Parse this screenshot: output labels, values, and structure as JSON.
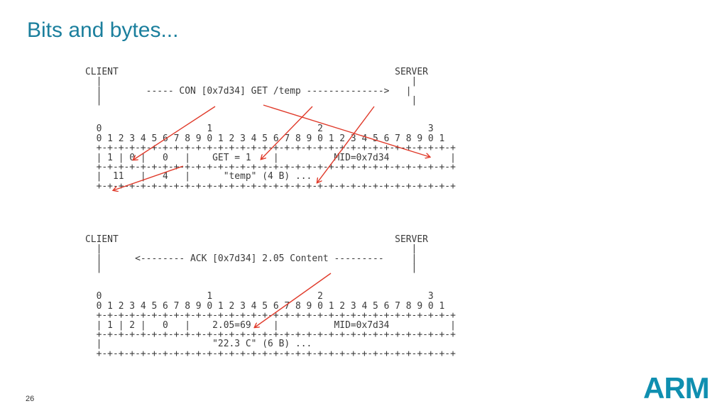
{
  "slide": {
    "title": "Bits and bytes...",
    "page_number": "26",
    "logo_text": "ARM",
    "accent_color": "#1b7f9d",
    "arrow_color": "#e03a2a"
  },
  "request": {
    "lines": [
      "CLIENT                                                  SERVER",
      "  |                                                        |",
      "  |        ----- CON [0x7d34] GET /temp -------------->   |",
      "  |                                                        |",
      "",
      "",
      "  0                   1                   2                   3",
      "  0 1 2 3 4 5 6 7 8 9 0 1 2 3 4 5 6 7 8 9 0 1 2 3 4 5 6 7 8 9 0 1",
      "  +-+-+-+-+-+-+-+-+-+-+-+-+-+-+-+-+-+-+-+-+-+-+-+-+-+-+-+-+-+-+-+-+",
      "  | 1 | 0 |   0   |    GET = 1    |          MID=0x7d34           |",
      "  +-+-+-+-+-+-+-+-+-+-+-+-+-+-+-+-+-+-+-+-+-+-+-+-+-+-+-+-+-+-+-+-+",
      "  |  11   |   4   |      \"temp\" (4 B) ...",
      "  +-+-+-+-+-+-+-+-+-+-+-+-+-+-+-+-+-+-+-+-+-+-+-+-+-+-+-+-+-+-+-+-+"
    ]
  },
  "response": {
    "lines": [
      "CLIENT                                                  SERVER",
      "  |                                                        |",
      "  |      <-------- ACK [0x7d34] 2.05 Content ---------     |",
      "  |                                                        |",
      "",
      "",
      "  0                   1                   2                   3",
      "  0 1 2 3 4 5 6 7 8 9 0 1 2 3 4 5 6 7 8 9 0 1 2 3 4 5 6 7 8 9 0 1",
      "  +-+-+-+-+-+-+-+-+-+-+-+-+-+-+-+-+-+-+-+-+-+-+-+-+-+-+-+-+-+-+-+-+",
      "  | 1 | 2 |   0   |    2.05=69    |          MID=0x7d34           |",
      "  +-+-+-+-+-+-+-+-+-+-+-+-+-+-+-+-+-+-+-+-+-+-+-+-+-+-+-+-+-+-+-+-+",
      "  |                    \"22.3 C\" (6 B) ...",
      "  +-+-+-+-+-+-+-+-+-+-+-+-+-+-+-+-+-+-+-+-+-+-+-+-+-+-+-+-+-+-+-+-+"
    ]
  }
}
